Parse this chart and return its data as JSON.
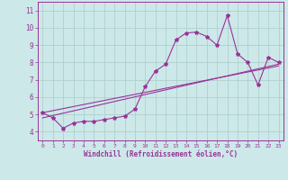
{
  "xlabel": "Windchill (Refroidissement éolien,°C)",
  "xlim": [
    -0.5,
    23.5
  ],
  "ylim": [
    3.5,
    11.5
  ],
  "yticks": [
    4,
    5,
    6,
    7,
    8,
    9,
    10,
    11
  ],
  "xticks": [
    0,
    1,
    2,
    3,
    4,
    5,
    6,
    7,
    8,
    9,
    10,
    11,
    12,
    13,
    14,
    15,
    16,
    17,
    18,
    19,
    20,
    21,
    22,
    23
  ],
  "bg_color": "#cce8e8",
  "grid_color": "#aacccc",
  "line_color": "#993399",
  "line1_x": [
    0,
    1,
    2,
    3,
    4,
    5,
    6,
    7,
    8,
    9,
    10,
    11,
    12,
    13,
    14,
    15,
    16,
    17,
    18,
    19,
    20,
    21,
    22,
    23
  ],
  "line1_y": [
    5.1,
    4.8,
    4.2,
    4.5,
    4.6,
    4.6,
    4.7,
    4.8,
    4.9,
    5.3,
    6.6,
    7.5,
    7.9,
    9.3,
    9.7,
    9.75,
    9.5,
    9.0,
    10.7,
    8.5,
    8.0,
    6.7,
    8.3,
    8.0
  ],
  "line2_x": [
    0,
    23
  ],
  "line2_y": [
    4.8,
    7.9
  ],
  "line3_x": [
    0,
    23
  ],
  "line3_y": [
    5.1,
    7.8
  ]
}
